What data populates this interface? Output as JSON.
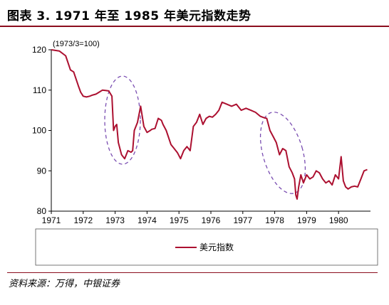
{
  "figure": {
    "title": "图表 3. 1971 年至 1985 年美元指数走势",
    "source": "资料来源：万得，中银证券"
  },
  "colors": {
    "series": "#ac1030",
    "ellipse": "#7b4fb2",
    "rule": "#8b0d1e"
  },
  "chart_data": {
    "type": "line",
    "unit_label": "(1973/3=100)",
    "ylim": [
      80,
      120
    ],
    "xlim": [
      1971,
      1981
    ],
    "yticks": [
      80,
      90,
      100,
      110,
      120
    ],
    "xticks": [
      "1971",
      "1972",
      "1973",
      "1974",
      "1975",
      "1976",
      "1977",
      "1978",
      "1979",
      "1980"
    ],
    "legend_position": "bottom",
    "series": [
      {
        "name": "美元指数",
        "x": [
          1971.0,
          1971.25,
          1971.45,
          1971.6,
          1971.7,
          1971.85,
          1971.92,
          1972.0,
          1972.1,
          1972.2,
          1972.3,
          1972.4,
          1972.5,
          1972.6,
          1972.7,
          1972.8,
          1972.9,
          1972.95,
          1973.0,
          1973.05,
          1973.1,
          1973.2,
          1973.3,
          1973.4,
          1973.5,
          1973.55,
          1973.6,
          1973.7,
          1973.8,
          1973.9,
          1974.0,
          1974.1,
          1974.15,
          1974.25,
          1974.35,
          1974.45,
          1974.5,
          1974.6,
          1974.75,
          1974.85,
          1974.95,
          1975.05,
          1975.15,
          1975.25,
          1975.35,
          1975.45,
          1975.55,
          1975.65,
          1975.75,
          1975.85,
          1975.95,
          1976.05,
          1976.15,
          1976.25,
          1976.35,
          1976.5,
          1976.65,
          1976.8,
          1976.95,
          1977.1,
          1977.25,
          1977.4,
          1977.55,
          1977.65,
          1977.75,
          1977.85,
          1977.95,
          1978.05,
          1978.15,
          1978.25,
          1978.35,
          1978.45,
          1978.55,
          1978.62,
          1978.66,
          1978.7,
          1978.75,
          1978.82,
          1978.9,
          1979.0,
          1979.1,
          1979.2,
          1979.3,
          1979.4,
          1979.5,
          1979.6,
          1979.7,
          1979.8,
          1979.9,
          1980.0,
          1980.08,
          1980.15,
          1980.22,
          1980.3,
          1980.4,
          1980.5,
          1980.6,
          1980.7,
          1980.8,
          1980.9
        ],
        "values": [
          120.0,
          119.7,
          118.5,
          115.0,
          114.5,
          111.0,
          109.5,
          108.5,
          108.3,
          108.5,
          108.8,
          109.0,
          109.5,
          110.0,
          109.9,
          109.8,
          108.5,
          100.0,
          101.0,
          101.5,
          97.0,
          94.0,
          93.0,
          95.0,
          94.6,
          95.0,
          100.0,
          102.0,
          106.0,
          101.0,
          99.5,
          100.0,
          100.3,
          100.5,
          103.0,
          102.5,
          101.5,
          100.0,
          96.5,
          95.5,
          94.5,
          93.0,
          95.0,
          96.0,
          95.0,
          101.0,
          102.0,
          104.0,
          101.5,
          103.0,
          103.5,
          103.3,
          104.0,
          105.0,
          107.0,
          106.5,
          106.0,
          106.5,
          105.0,
          105.5,
          105.0,
          104.5,
          103.5,
          103.2,
          103.0,
          100.0,
          98.5,
          97.0,
          94.0,
          95.5,
          95.0,
          91.0,
          89.5,
          88.0,
          84.0,
          83.0,
          86.0,
          89.0,
          87.0,
          89.0,
          88.0,
          88.5,
          90.0,
          89.5,
          88.0,
          87.0,
          87.5,
          86.5,
          89.0,
          88.0,
          93.5,
          87.5,
          86.0,
          85.5,
          86.0,
          86.2,
          86.0,
          88.0,
          90.0,
          90.3
        ]
      }
    ]
  }
}
